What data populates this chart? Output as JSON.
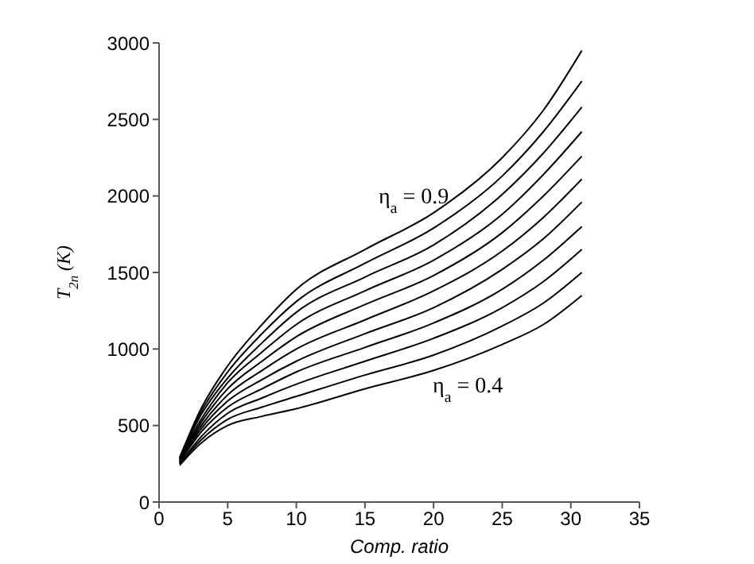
{
  "chart_data": {
    "type": "line",
    "xlabel": "Comp. ratio",
    "ylabel": "T$_{2n}$(K)",
    "x": [
      1.5,
      3,
      5,
      7.5,
      10,
      15,
      20,
      25,
      28,
      30.8
    ],
    "series": [
      {
        "color": "#000000",
        "values": [
          240,
          380,
          500,
          560,
          610,
          740,
          860,
          1030,
          1160,
          1350
        ]
      },
      {
        "color": "#000000",
        "values": [
          250,
          400,
          540,
          620,
          690,
          830,
          960,
          1150,
          1300,
          1500
        ]
      },
      {
        "color": "#000000",
        "values": [
          250,
          420,
          580,
          680,
          770,
          920,
          1070,
          1270,
          1440,
          1650
        ]
      },
      {
        "color": "#000000",
        "values": [
          260,
          450,
          620,
          740,
          850,
          1010,
          1170,
          1390,
          1580,
          1800
        ]
      },
      {
        "color": "#000000",
        "values": [
          260,
          470,
          660,
          800,
          920,
          1100,
          1270,
          1520,
          1720,
          1960
        ]
      },
      {
        "color": "#000000",
        "values": [
          270,
          490,
          700,
          860,
          1000,
          1190,
          1380,
          1640,
          1860,
          2110
        ]
      },
      {
        "color": "#000000",
        "values": [
          270,
          510,
          740,
          920,
          1080,
          1290,
          1480,
          1760,
          2000,
          2260
        ]
      },
      {
        "color": "#000000",
        "values": [
          280,
          530,
          780,
          980,
          1160,
          1380,
          1580,
          1880,
          2140,
          2420
        ]
      },
      {
        "color": "#000000",
        "values": [
          280,
          560,
          810,
          1040,
          1240,
          1470,
          1680,
          2010,
          2280,
          2580
        ]
      },
      {
        "color": "#000000",
        "values": [
          290,
          580,
          850,
          1100,
          1310,
          1560,
          1790,
          2130,
          2420,
          2750
        ]
      },
      {
        "color": "#000000",
        "values": [
          290,
          600,
          890,
          1160,
          1390,
          1650,
          1890,
          2250,
          2560,
          2950
        ]
      }
    ],
    "annotations": [
      "η$_{a}$ = 0.9",
      "η$_{a}$ = 0.4"
    ],
    "xlim": [
      0,
      35
    ],
    "xticks": [
      0,
      5,
      10,
      15,
      20,
      25,
      30,
      35
    ],
    "ylim": [
      0,
      3000
    ],
    "yticks": [
      0,
      500,
      1000,
      1500,
      2000,
      2500,
      3000
    ],
    "grid": false,
    "marker": "none",
    "line_style": "solid"
  }
}
